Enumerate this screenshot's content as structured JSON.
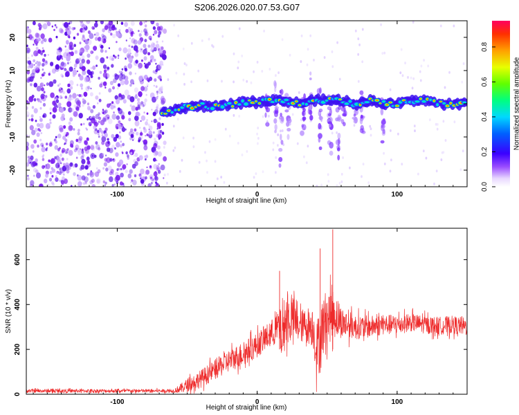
{
  "title": "S206.2026.020.07.53.G07",
  "chart_data": [
    {
      "type": "heatmap",
      "xlabel": "Height of straight line (km)",
      "ylabel": "Frequency (Hz)",
      "xlim": [
        -165,
        150
      ],
      "ylim": [
        -25,
        25
      ],
      "xticks": [
        -100,
        0,
        100
      ],
      "yticks": [
        -20,
        -10,
        0,
        10,
        20
      ],
      "colorbar": {
        "label": "Normalized spectral amplitude",
        "range": [
          0,
          0.95
        ],
        "ticks": [
          0.0,
          0.2,
          0.4,
          0.6,
          0.8
        ]
      },
      "ridge": {
        "x": [
          -68,
          -60,
          -50,
          -40,
          -30,
          -20,
          -10,
          0,
          10,
          20,
          30,
          40,
          50,
          60,
          70,
          80,
          90,
          100,
          110,
          120,
          130,
          140,
          150
        ],
        "freq": [
          -3,
          -2,
          -1,
          -0.5,
          -1,
          -0.5,
          0.5,
          0.5,
          1,
          1,
          0,
          1,
          1,
          1,
          0,
          1,
          0,
          0,
          1,
          1,
          0,
          0,
          0
        ]
      },
      "noise_region_x": [
        -165,
        -68
      ],
      "grid": false
    },
    {
      "type": "line",
      "xlabel": "Height of straight line (km)",
      "ylabel": "SNR (10 * v/v)",
      "xlim": [
        -165,
        150
      ],
      "ylim": [
        0,
        740
      ],
      "xticks": [
        -100,
        0,
        100
      ],
      "yticks": [
        0,
        200,
        400,
        600
      ],
      "color": "#ee2b2b",
      "envelope": {
        "x": [
          -165,
          -100,
          -60,
          -55,
          -50,
          -40,
          -30,
          -20,
          -10,
          0,
          10,
          15,
          18,
          20,
          25,
          30,
          35,
          40,
          42,
          45,
          48,
          50,
          55,
          60,
          70,
          80,
          90,
          100,
          110,
          120,
          130,
          140,
          150
        ],
        "mean": [
          15,
          15,
          15,
          25,
          40,
          70,
          110,
          150,
          180,
          220,
          270,
          300,
          260,
          330,
          340,
          300,
          310,
          300,
          200,
          240,
          330,
          340,
          360,
          320,
          300,
          300,
          310,
          310,
          320,
          310,
          305,
          310,
          300
        ],
        "spread": [
          8,
          8,
          8,
          20,
          30,
          40,
          45,
          50,
          55,
          55,
          60,
          80,
          120,
          120,
          100,
          70,
          80,
          90,
          120,
          150,
          130,
          120,
          110,
          70,
          55,
          50,
          45,
          45,
          40,
          40,
          40,
          40,
          40
        ]
      },
      "peaks": [
        {
          "x": 16,
          "y": 550
        },
        {
          "x": 45,
          "y": 650
        },
        {
          "x": 54,
          "y": 735
        }
      ],
      "grid": false
    }
  ]
}
